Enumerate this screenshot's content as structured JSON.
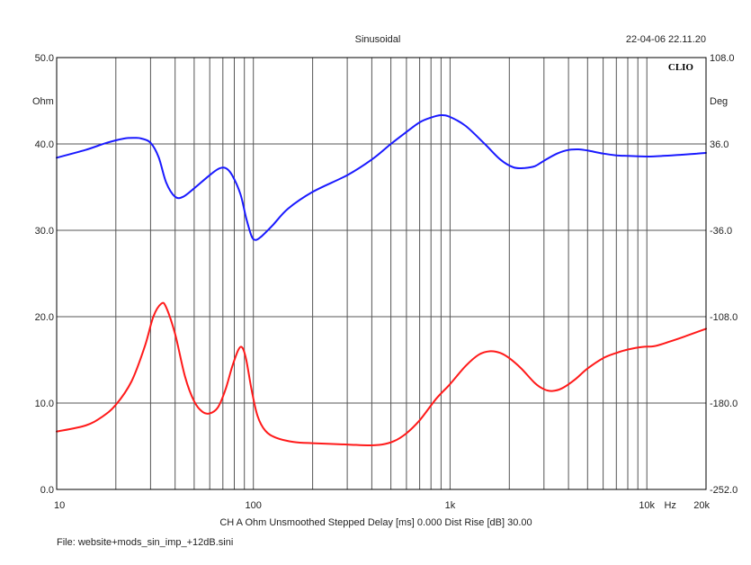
{
  "header": {
    "title": "Sinusoidal",
    "timestamp": "22-04-06 22.11.20",
    "logo": "CLIO"
  },
  "footer": {
    "settings": "CH A   Ohm   Unsmoothed   Stepped   Delay [ms] 0.000   Dist Rise [dB] 30.00",
    "file": "File: website+mods_sin_imp_+12dB.sini"
  },
  "colors": {
    "impedance": "#ff1a1a",
    "phase": "#1a1aff",
    "grid": "#555555"
  },
  "chart_data": {
    "type": "line",
    "x_scale": "log",
    "xlim": [
      10,
      20000
    ],
    "ylim_left": [
      0,
      50
    ],
    "ylim_right": [
      -252,
      108
    ],
    "grid": true,
    "ylabel_left": "Ohm",
    "ylabel_right": "Deg",
    "xlabel": "Hz",
    "x_tick_labels": [
      "10",
      "100",
      "1k",
      "10k",
      "20k"
    ],
    "y_left_tick_labels": [
      "0.0",
      "10.0",
      "20.0",
      "30.0",
      "40.0",
      "50.0"
    ],
    "y_right_tick_labels": [
      "-252.0",
      "-180.0",
      "-108.0",
      "-36.0",
      "36.0",
      "108.0"
    ],
    "series": [
      {
        "axis": "left",
        "color": "#ff1a1a",
        "points": [
          [
            10,
            6.7
          ],
          [
            14,
            7.4
          ],
          [
            17,
            8.4
          ],
          [
            20,
            9.8
          ],
          [
            24,
            12.5
          ],
          [
            28,
            16.5
          ],
          [
            31,
            20.0
          ],
          [
            34,
            21.5
          ],
          [
            36,
            21.1
          ],
          [
            40,
            18.0
          ],
          [
            45,
            13.0
          ],
          [
            50,
            10.2
          ],
          [
            55,
            9.0
          ],
          [
            60,
            8.8
          ],
          [
            66,
            9.5
          ],
          [
            72,
            11.5
          ],
          [
            78,
            14.2
          ],
          [
            84,
            16.2
          ],
          [
            88,
            16.4
          ],
          [
            92,
            15.0
          ],
          [
            98,
            11.5
          ],
          [
            105,
            8.5
          ],
          [
            115,
            6.8
          ],
          [
            130,
            6.0
          ],
          [
            160,
            5.5
          ],
          [
            200,
            5.35
          ],
          [
            300,
            5.2
          ],
          [
            380,
            5.1
          ],
          [
            450,
            5.2
          ],
          [
            520,
            5.6
          ],
          [
            600,
            6.5
          ],
          [
            700,
            8.0
          ],
          [
            850,
            10.5
          ],
          [
            1000,
            12.2
          ],
          [
            1200,
            14.3
          ],
          [
            1400,
            15.6
          ],
          [
            1600,
            16.0
          ],
          [
            1800,
            15.8
          ],
          [
            2000,
            15.2
          ],
          [
            2300,
            14.0
          ],
          [
            2700,
            12.3
          ],
          [
            3000,
            11.6
          ],
          [
            3300,
            11.4
          ],
          [
            3700,
            11.7
          ],
          [
            4300,
            12.7
          ],
          [
            5000,
            14.0
          ],
          [
            6000,
            15.2
          ],
          [
            7000,
            15.8
          ],
          [
            8000,
            16.2
          ],
          [
            9500,
            16.5
          ],
          [
            11000,
            16.6
          ],
          [
            13000,
            17.1
          ],
          [
            16000,
            17.8
          ],
          [
            20000,
            18.6
          ]
        ]
      },
      {
        "axis": "right",
        "color": "#1a1aff",
        "points": [
          [
            10,
            24.5
          ],
          [
            14,
            31
          ],
          [
            18,
            37
          ],
          [
            22,
            40.5
          ],
          [
            25,
            41
          ],
          [
            27,
            40.5
          ],
          [
            30,
            37
          ],
          [
            33,
            25
          ],
          [
            36,
            4
          ],
          [
            40,
            -8
          ],
          [
            44,
            -8
          ],
          [
            50,
            -1
          ],
          [
            58,
            8
          ],
          [
            66,
            15
          ],
          [
            72,
            16
          ],
          [
            78,
            10
          ],
          [
            86,
            -6
          ],
          [
            92,
            -26
          ],
          [
            98,
            -41
          ],
          [
            103,
            -44
          ],
          [
            110,
            -41
          ],
          [
            125,
            -32
          ],
          [
            150,
            -18
          ],
          [
            200,
            -4
          ],
          [
            300,
            10
          ],
          [
            400,
            23
          ],
          [
            500,
            36
          ],
          [
            600,
            46
          ],
          [
            700,
            54
          ],
          [
            800,
            58
          ],
          [
            900,
            60
          ],
          [
            1000,
            58.5
          ],
          [
            1200,
            51
          ],
          [
            1500,
            36
          ],
          [
            1800,
            23
          ],
          [
            2100,
            16.5
          ],
          [
            2400,
            16
          ],
          [
            2700,
            17.5
          ],
          [
            3000,
            22
          ],
          [
            3500,
            28
          ],
          [
            4000,
            31
          ],
          [
            4500,
            31.5
          ],
          [
            5000,
            30.5
          ],
          [
            6000,
            28
          ],
          [
            7000,
            26.5
          ],
          [
            8000,
            26
          ],
          [
            10000,
            25.5
          ],
          [
            12000,
            26
          ],
          [
            15000,
            27
          ],
          [
            18000,
            28
          ],
          [
            20000,
            28.5
          ]
        ]
      }
    ]
  }
}
